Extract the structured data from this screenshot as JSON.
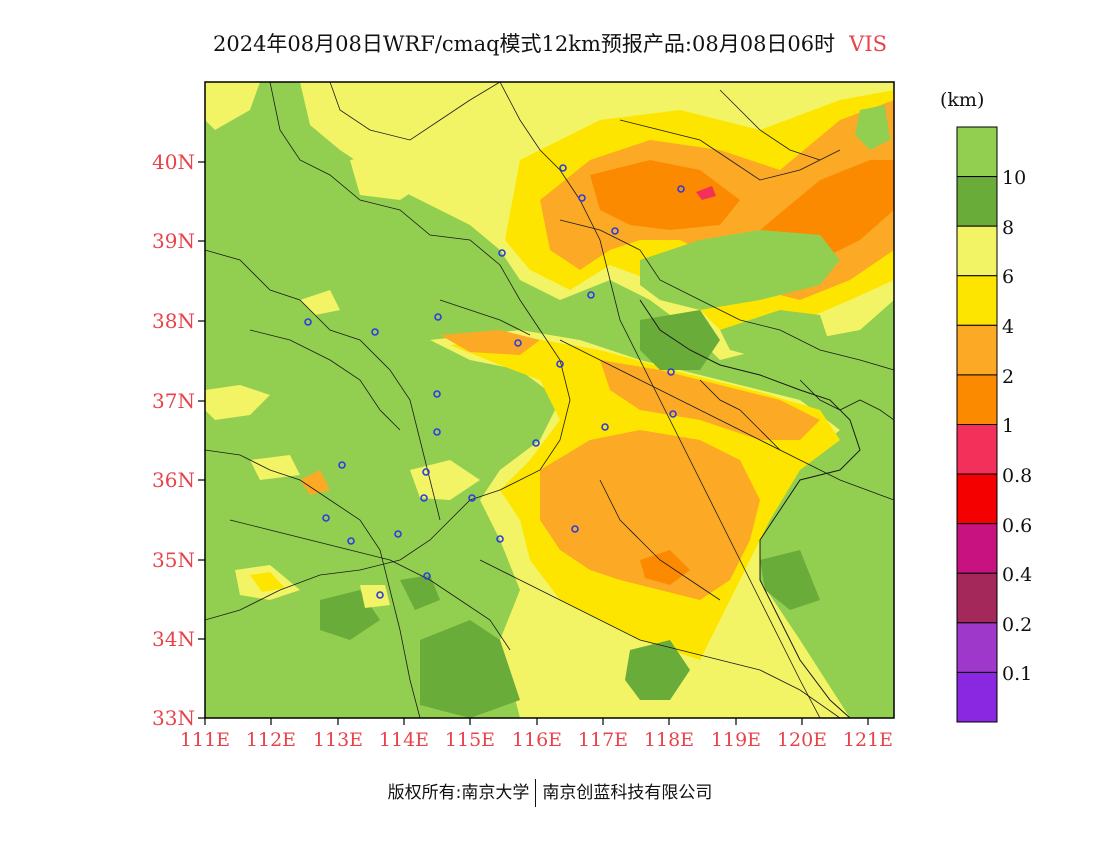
{
  "title": {
    "text": "2024年08月08日WRF/cmaq模式12km预报产品:08月08日06时",
    "variable": "VIS"
  },
  "map": {
    "lat_labels": [
      "40N",
      "39N",
      "38N",
      "37N",
      "36N",
      "35N",
      "34N",
      "33N"
    ],
    "lon_labels": [
      "111E",
      "112E",
      "113E",
      "114E",
      "115E",
      "116E",
      "117E",
      "118E",
      "119E",
      "120E",
      "121E"
    ],
    "lat_values": [
      40,
      39,
      38,
      37,
      36,
      35,
      34,
      33
    ],
    "lon_values": [
      111,
      112,
      113,
      114,
      115,
      116,
      117,
      118,
      119,
      120,
      121
    ],
    "extent": {
      "lon_min": 111,
      "lon_max": 121.4,
      "lat_min": 33,
      "lat_max": 41
    }
  },
  "colorbar": {
    "unit": "(km)",
    "labels": [
      "10",
      "8",
      "6",
      "4",
      "2",
      "1",
      "0.8",
      "0.6",
      "0.4",
      "0.2",
      "0.1"
    ],
    "colors": [
      "#92cf50",
      "#6aac3a",
      "#f2f466",
      "#fee500",
      "#fcaa26",
      "#fc8a00",
      "#f3305a",
      "#f50000",
      "#c8127f",
      "#a4285a",
      "#9d38cb",
      "#8a28e1"
    ]
  },
  "footer": {
    "left": "版权所有:南京大学",
    "right": "南京创蓝科技有限公司"
  }
}
